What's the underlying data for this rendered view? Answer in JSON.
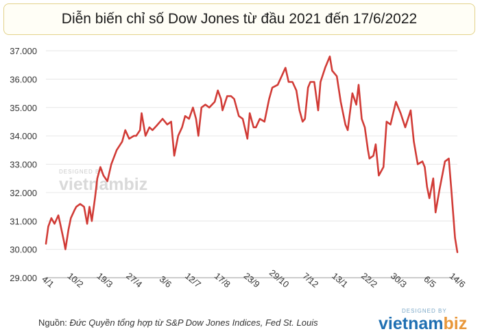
{
  "header": {
    "title": "Diễn biến chỉ số Dow Jones từ đầu 2021 đến 17/6/2022"
  },
  "footer": {
    "source_label": "Nguồn:",
    "source_text": "Đức Quyền tổng hợp từ S&P Dow Jones Indices, Fed St. Louis"
  },
  "watermark": {
    "designed_by": "DESIGNED BY",
    "brand_a": "vietnam",
    "brand_b": "biz"
  },
  "logo": {
    "designed_by": "DESIGNED BY",
    "brand_a": "vietnam",
    "brand_b": "biz"
  },
  "colors": {
    "line": "#d13b36",
    "grid": "#e6e6e6",
    "axis": "#999999",
    "brand_blue": "#1f6fb2",
    "brand_orange": "#e8973a"
  },
  "chart_data": {
    "type": "line",
    "title": "Diễn biến chỉ số Dow Jones từ đầu 2021 đến 17/6/2022",
    "xlabel": "",
    "ylabel": "",
    "ylim": [
      29000,
      37000
    ],
    "yticks": [
      29000,
      30000,
      31000,
      32000,
      33000,
      34000,
      35000,
      36000,
      37000
    ],
    "ytick_labels": [
      "29.000",
      "30.000",
      "31.000",
      "32.000",
      "33.000",
      "34.000",
      "35.000",
      "36.000",
      "37.000"
    ],
    "xtick_labels": [
      "4/1",
      "10/2",
      "19/3",
      "27/4",
      "3/6",
      "12/7",
      "17/8",
      "23/9",
      "29/10",
      "7/12",
      "13/1",
      "22/2",
      "30/3",
      "6/5",
      "14/6"
    ],
    "grid": true,
    "series": [
      {
        "x": [
          "4/1/2021",
          "7/1/2021",
          "11/1/2021",
          "15/1/2021",
          "20/1/2021",
          "22/1/2021",
          "27/1/2021",
          "29/1/2021",
          "2/2/2021",
          "5/2/2021",
          "10/2/2021",
          "12/2/2021",
          "17/2/2021",
          "22/2/2021",
          "26/2/2021",
          "1/3/2021",
          "4/3/2021",
          "8/3/2021",
          "11/3/2021",
          "15/3/2021",
          "19/3/2021",
          "24/3/2021",
          "29/3/2021",
          "5/4/2021",
          "12/4/2021",
          "16/4/2021",
          "21/4/2021",
          "27/4/2021",
          "30/4/2021",
          "5/5/2021",
          "7/5/2021",
          "12/5/2021",
          "17/5/2021",
          "21/5/2021",
          "26/5/2021",
          "3/6/2021",
          "9/6/2021",
          "14/6/2021",
          "18/6/2021",
          "23/6/2021",
          "28/6/2021",
          "2/7/2021",
          "7/7/2021",
          "12/7/2021",
          "16/7/2021",
          "19/7/2021",
          "23/7/2021",
          "28/7/2021",
          "2/8/2021",
          "9/8/2021",
          "13/8/2021",
          "17/8/2021",
          "19/8/2021",
          "25/8/2021",
          "30/8/2021",
          "3/9/2021",
          "9/9/2021",
          "14/9/2021",
          "20/9/2021",
          "23/9/2021",
          "28/9/2021",
          "1/10/2021",
          "6/10/2021",
          "12/10/2021",
          "18/10/2021",
          "22/10/2021",
          "29/10/2021",
          "3/11/2021",
          "8/11/2021",
          "12/11/2021",
          "17/11/2021",
          "22/11/2021",
          "26/11/2021",
          "30/11/2021",
          "3/12/2021",
          "7/12/2021",
          "10/12/2021",
          "15/12/2021",
          "20/12/2021",
          "23/12/2021",
          "29/12/2021",
          "4/1/2022",
          "7/1/2022",
          "13/1/2022",
          "18/1/2022",
          "24/1/2022",
          "27/1/2022",
          "2/2/2022",
          "7/2/2022",
          "10/2/2022",
          "14/2/2022",
          "18/2/2022",
          "22/2/2022",
          "24/2/2022",
          "1/3/2022",
          "4/3/2022",
          "8/3/2022",
          "14/3/2022",
          "18/3/2022",
          "23/3/2022",
          "30/3/2022",
          "5/4/2022",
          "11/4/2022",
          "18/4/2022",
          "22/4/2022",
          "27/4/2022",
          "3/5/2022",
          "6/5/2022",
          "9/5/2022",
          "12/5/2022",
          "17/5/2022",
          "20/5/2022",
          "25/5/2022",
          "1/6/2022",
          "6/6/2022",
          "9/6/2022",
          "14/6/2022",
          "17/6/2022"
        ],
        "values": [
          30200,
          30800,
          31100,
          30900,
          31200,
          30950,
          30300,
          30000,
          30700,
          31100,
          31400,
          31500,
          31600,
          31500,
          30900,
          31500,
          31000,
          31800,
          32500,
          32900,
          32600,
          32400,
          33000,
          33500,
          33800,
          34200,
          33900,
          34000,
          34000,
          34200,
          34800,
          34000,
          34300,
          34200,
          34350,
          34600,
          34400,
          34500,
          33300,
          34000,
          34300,
          34700,
          34600,
          35000,
          34600,
          34000,
          35000,
          35100,
          35000,
          35200,
          35600,
          35300,
          34900,
          35400,
          35400,
          35300,
          34700,
          34600,
          33900,
          34800,
          34300,
          34300,
          34600,
          34500,
          35300,
          35700,
          35800,
          36100,
          36400,
          35900,
          35900,
          35600,
          34900,
          34500,
          34600,
          35700,
          35900,
          35900,
          34900,
          35900,
          36400,
          36800,
          36300,
          36100,
          35200,
          34400,
          34200,
          35500,
          35100,
          35800,
          34600,
          34300,
          33500,
          33200,
          33300,
          33700,
          32600,
          32900,
          34500,
          34400,
          35200,
          34800,
          34300,
          34900,
          33800,
          33000,
          33100,
          32900,
          32200,
          31800,
          32500,
          31300,
          32100,
          33100,
          33200,
          32200,
          30400,
          29900
        ]
      }
    ]
  }
}
